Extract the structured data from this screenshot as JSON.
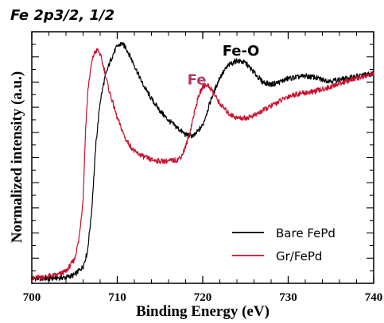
{
  "chart_data": {
    "type": "line",
    "title": "Fe 2p3/2, 1/2",
    "xlabel": "Binding Energy (eV)",
    "ylabel": "Normalized intensity (a.u.)",
    "xlim": [
      700,
      740
    ],
    "ylim": [
      0,
      1.05
    ],
    "x_ticks": [
      "700",
      "710",
      "720",
      "730",
      "740"
    ],
    "y_ticklabels_shown": false,
    "grid": false,
    "legend_position": "bottom-right",
    "annotations": [
      {
        "text": "Fe-O",
        "x": 722.3,
        "y": 0.95,
        "color": "#000000"
      },
      {
        "text": "Fe",
        "x": 718.2,
        "y": 0.83,
        "color": "#b03a5e"
      }
    ],
    "series": [
      {
        "name": "Bare FePd",
        "color": "#000000",
        "x": [
          700,
          702,
          704,
          705,
          706,
          706.5,
          707,
          707.5,
          708,
          708.5,
          709,
          709.5,
          710,
          710.5,
          711,
          712,
          713,
          714,
          715,
          716,
          717,
          718,
          719,
          720,
          721,
          722,
          723,
          724,
          725,
          726,
          727,
          728,
          729,
          730,
          731,
          732,
          733,
          734,
          735,
          736,
          737,
          738,
          739,
          740
        ],
        "y": [
          0.02,
          0.02,
          0.025,
          0.035,
          0.07,
          0.13,
          0.3,
          0.58,
          0.76,
          0.85,
          0.91,
          0.955,
          0.99,
          1.0,
          0.985,
          0.91,
          0.83,
          0.77,
          0.72,
          0.68,
          0.65,
          0.62,
          0.615,
          0.66,
          0.77,
          0.86,
          0.91,
          0.93,
          0.92,
          0.88,
          0.84,
          0.83,
          0.84,
          0.855,
          0.86,
          0.865,
          0.86,
          0.85,
          0.845,
          0.85,
          0.855,
          0.865,
          0.87,
          0.875
        ]
      },
      {
        "name": "Gr/FePd",
        "color": "#c8102e",
        "x": [
          700,
          702,
          703,
          704,
          705,
          705.5,
          706,
          706.3,
          706.6,
          707,
          707.3,
          707.7,
          708,
          708.5,
          709,
          710,
          711,
          712,
          713,
          714,
          715,
          716,
          717,
          717.5,
          718,
          718.5,
          719,
          719.5,
          720,
          720.5,
          721,
          722,
          723,
          724,
          725,
          726,
          727,
          728,
          729,
          730,
          731,
          732,
          733,
          734,
          735,
          736,
          737,
          738,
          739,
          740
        ],
        "y": [
          0.02,
          0.03,
          0.035,
          0.05,
          0.1,
          0.18,
          0.35,
          0.65,
          0.82,
          0.92,
          0.96,
          0.975,
          0.955,
          0.89,
          0.81,
          0.69,
          0.6,
          0.55,
          0.53,
          0.515,
          0.51,
          0.51,
          0.515,
          0.53,
          0.57,
          0.63,
          0.71,
          0.78,
          0.82,
          0.83,
          0.81,
          0.75,
          0.71,
          0.69,
          0.69,
          0.7,
          0.72,
          0.74,
          0.76,
          0.78,
          0.79,
          0.795,
          0.8,
          0.81,
          0.82,
          0.835,
          0.845,
          0.855,
          0.865,
          0.875
        ]
      }
    ]
  }
}
